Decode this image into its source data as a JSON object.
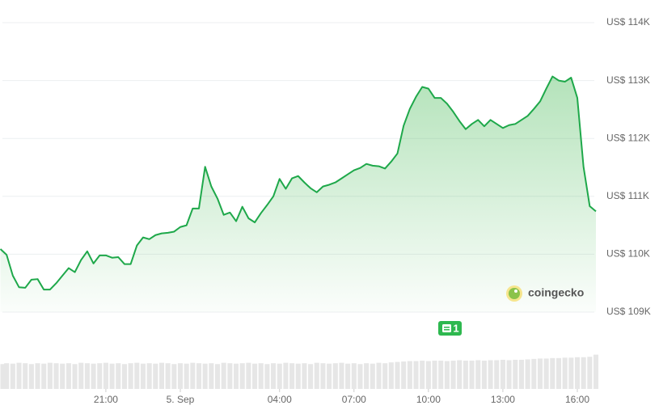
{
  "chart_data": {
    "type": "line",
    "x": [
      16.75,
      17,
      17.25,
      17.5,
      17.75,
      18,
      18.25,
      18.5,
      18.75,
      19,
      19.25,
      19.5,
      19.75,
      20,
      20.25,
      20.5,
      20.75,
      21,
      21.25,
      21.5,
      21.75,
      22,
      22.25,
      22.5,
      22.75,
      23,
      23.25,
      23.5,
      23.75,
      24,
      24.25,
      24.5,
      24.75,
      25,
      25.25,
      25.5,
      25.75,
      26,
      26.25,
      26.5,
      26.75,
      27,
      27.25,
      27.5,
      27.75,
      28,
      28.25,
      28.5,
      28.75,
      29,
      29.25,
      29.5,
      29.75,
      30,
      30.25,
      30.5,
      30.75,
      31,
      31.25,
      31.5,
      31.75,
      32,
      32.25,
      32.5,
      32.75,
      33,
      33.25,
      33.5,
      33.75,
      34,
      34.25,
      34.5,
      34.75,
      35,
      35.25,
      35.5,
      35.75,
      36,
      36.25,
      36.5,
      36.75,
      37,
      37.25,
      37.5,
      37.75,
      38,
      38.25,
      38.5,
      38.75,
      39,
      39.25,
      39.5,
      39.75,
      40,
      40.25,
      40.5,
      40.75
    ],
    "series": [
      {
        "color": "#1ea84a",
        "values": [
          110090,
          109990,
          109630,
          109430,
          109420,
          109560,
          109570,
          109390,
          109390,
          109500,
          109630,
          109760,
          109690,
          109900,
          110050,
          109840,
          109980,
          109980,
          109940,
          109950,
          109830,
          109830,
          110150,
          110290,
          110260,
          110330,
          110360,
          110370,
          110390,
          110470,
          110500,
          110790,
          110790,
          111510,
          111170,
          110960,
          110680,
          110720,
          110570,
          110820,
          110620,
          110550,
          110710,
          110850,
          111000,
          111300,
          111130,
          111310,
          111350,
          111240,
          111140,
          111070,
          111170,
          111200,
          111240,
          111310,
          111380,
          111450,
          111490,
          111560,
          111530,
          111520,
          111480,
          111600,
          111740,
          112220,
          112510,
          112720,
          112890,
          112860,
          112700,
          112700,
          112600,
          112460,
          112300,
          112160,
          112250,
          112320,
          112210,
          112320,
          112250,
          112180,
          112230,
          112250,
          112320,
          112390,
          112510,
          112640,
          112860,
          113070,
          113000,
          112980,
          113050,
          112700,
          111510,
          110830,
          110740
        ]
      },
      {
        "axis": "y2",
        "color": "#e6e6e6",
        "values": [
          58,
          60,
          59,
          61,
          60,
          58,
          60,
          59,
          61,
          60,
          59,
          60,
          58,
          61,
          60,
          59,
          60,
          61,
          59,
          60,
          58,
          60,
          61,
          59,
          60,
          59,
          61,
          60,
          58,
          60,
          59,
          61,
          60,
          59,
          60,
          58,
          61,
          60,
          59,
          60,
          61,
          59,
          60,
          58,
          60,
          59,
          61,
          60,
          59,
          60,
          58,
          61,
          60,
          59,
          60,
          61,
          59,
          60,
          58,
          60,
          59,
          61,
          60,
          62,
          63,
          64,
          65,
          65,
          66,
          65,
          66,
          66,
          65,
          66,
          67,
          66,
          66,
          67,
          66,
          67,
          67,
          68,
          67,
          68,
          68,
          69,
          70,
          71,
          71,
          72,
          72,
          73,
          73,
          74,
          74,
          75,
          80
        ]
      }
    ],
    "xlim": [
      16.75,
      40.75
    ],
    "xticks": [
      {
        "value": 21,
        "label": "21:00"
      },
      {
        "value": 24,
        "label": "5. Sep"
      },
      {
        "value": 28,
        "label": "04:00"
      },
      {
        "value": 31,
        "label": "07:00"
      },
      {
        "value": 34,
        "label": "10:00"
      },
      {
        "value": 37,
        "label": "13:00"
      },
      {
        "value": 40,
        "label": "16:00"
      }
    ],
    "ylim": [
      109000,
      114000
    ],
    "yticks": [
      {
        "value": 109000,
        "label": "US$ 109K"
      },
      {
        "value": 110000,
        "label": "US$ 110K"
      },
      {
        "value": 111000,
        "label": "US$ 111K"
      },
      {
        "value": 112000,
        "label": "US$ 112K"
      },
      {
        "value": 113000,
        "label": "US$ 113K"
      },
      {
        "value": 114000,
        "label": "US$ 114K"
      }
    ],
    "y2lim": [
      0,
      100
    ],
    "grid": true,
    "annotation": "1",
    "watermark": "coingecko"
  }
}
